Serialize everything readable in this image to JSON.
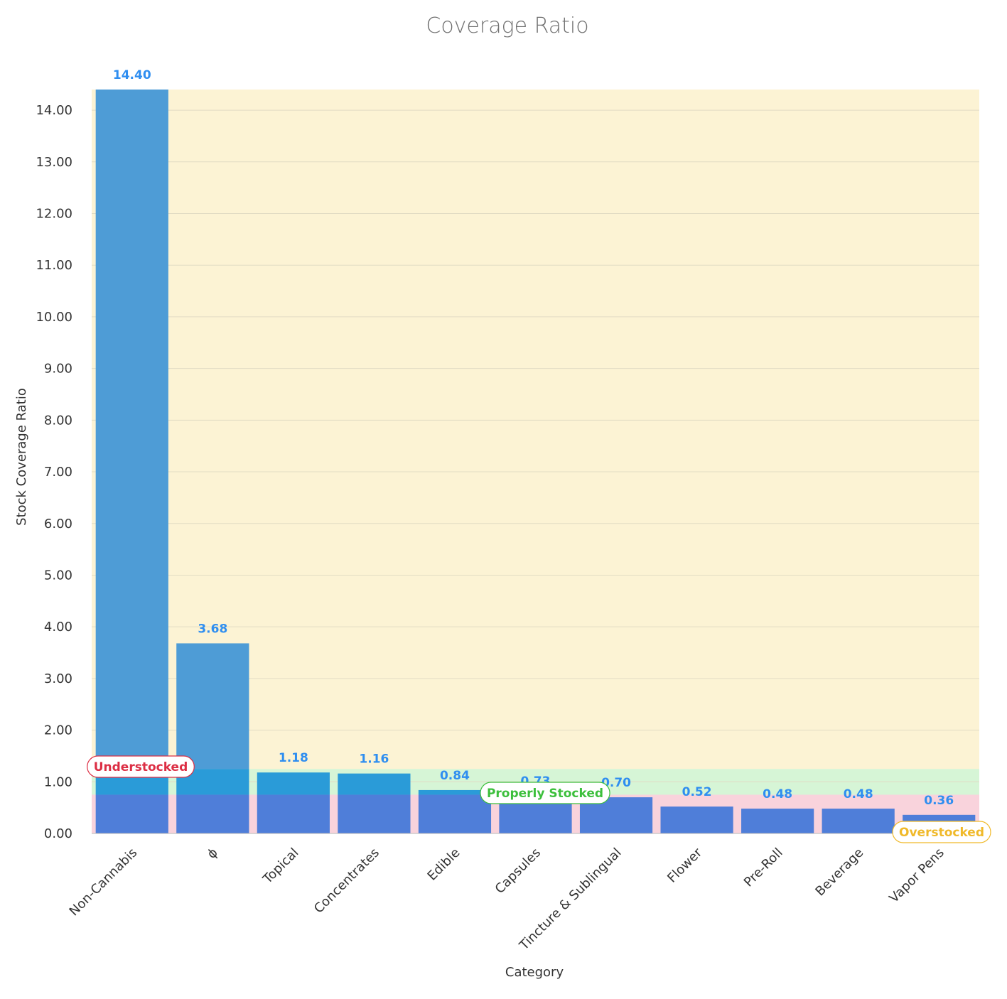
{
  "chart_data": {
    "type": "bar",
    "title": "Coverage Ratio",
    "xlabel": "Category",
    "ylabel": "Stock Coverage Ratio",
    "ylim": [
      0,
      14.4
    ],
    "yticks": [
      "0.00",
      "1.00",
      "2.00",
      "3.00",
      "4.00",
      "5.00",
      "6.00",
      "7.00",
      "8.00",
      "9.00",
      "10.00",
      "11.00",
      "12.00",
      "13.00",
      "14.00"
    ],
    "grid": true,
    "categories": [
      "Non-Cannabis",
      "ϕ",
      "Topical",
      "Concentrates",
      "Edible",
      "Capsules",
      "Tincture & Sublingual",
      "Flower",
      "Pre-Roll",
      "Beverage",
      "Vapor Pens"
    ],
    "values": [
      14.4,
      3.68,
      1.18,
      1.16,
      0.84,
      0.73,
      0.7,
      0.52,
      0.48,
      0.48,
      0.36
    ],
    "data_labels": [
      "14.40",
      "3.68",
      "1.18",
      "1.16",
      "0.84",
      "0.73",
      "0.70",
      "0.52",
      "0.48",
      "0.48",
      "0.36"
    ],
    "bands": [
      {
        "name": "Understocked",
        "from": 0,
        "to": 0.75,
        "color": "#f9d3dc",
        "label_color": "#dc2e44"
      },
      {
        "name": "Properly Stocked",
        "from": 0.75,
        "to": 1.25,
        "color": "#d6f5d6",
        "label_color": "#3cbf3c"
      },
      {
        "name": "Overstocked",
        "from": 1.25,
        "to": 14.4,
        "color": "#fcf3d4",
        "label_color": "#f0b929"
      }
    ],
    "colors": {
      "bar_over": "#4e9cd6",
      "bar_proper": "#2a9bd8",
      "bar_under": "#4f7ed9",
      "label": "#2f8ef0",
      "gridline": "#e2dcc4"
    }
  }
}
